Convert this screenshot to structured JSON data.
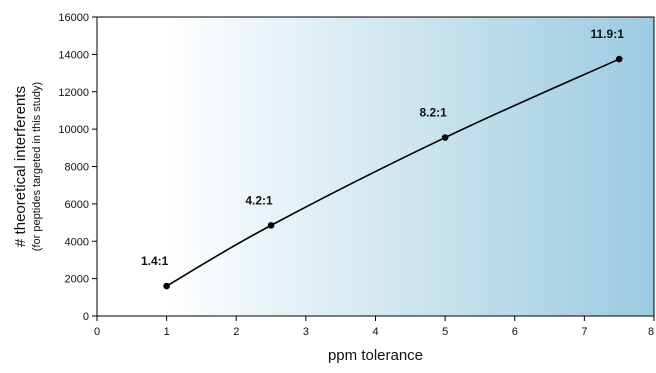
{
  "chart_data": {
    "type": "line",
    "xlabel": "ppm tolerance",
    "ylabel": "# theoretical interferents",
    "ylabel_sub": "(for peptides targeted in this study)",
    "xlim": [
      0,
      8
    ],
    "ylim": [
      0,
      16000
    ],
    "x_ticks": [
      0,
      1,
      2,
      3,
      4,
      5,
      6,
      7,
      8
    ],
    "y_ticks": [
      0,
      2000,
      4000,
      6000,
      8000,
      10000,
      12000,
      14000,
      16000
    ],
    "series": [
      {
        "x": [
          1,
          2.5,
          5,
          7.5
        ],
        "y": [
          1600,
          4850,
          9550,
          13750
        ],
        "point_labels": [
          "1.4:1",
          "4.2:1",
          "8.2:1",
          "11.9:1"
        ],
        "color": "#000000"
      }
    ],
    "grid": false,
    "background_gradient": [
      "#ffffff",
      "#9ccbe0"
    ]
  }
}
